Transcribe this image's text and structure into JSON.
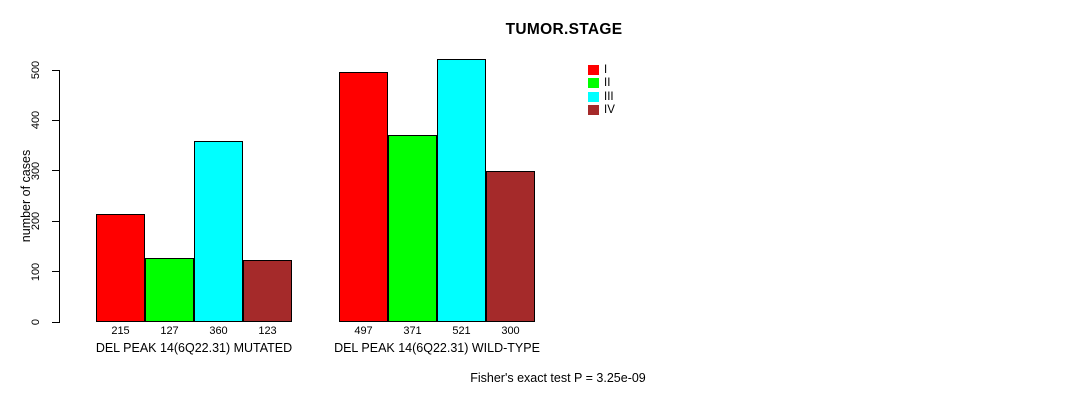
{
  "chart_data": {
    "type": "bar",
    "title": "TUMOR.STAGE",
    "ylabel": "number of cases",
    "xlabel": "",
    "ylim": [
      0,
      500
    ],
    "yticks": [
      0,
      100,
      200,
      300,
      400,
      500
    ],
    "grid": false,
    "legend_position": "right-of-plot",
    "categories": [
      "DEL PEAK 14(6Q22.31) MUTATED",
      "DEL PEAK 14(6Q22.31) WILD-TYPE"
    ],
    "series": [
      {
        "name": "I",
        "color": "#FF0000",
        "values": [
          215,
          497
        ]
      },
      {
        "name": "II",
        "color": "#00FF00",
        "values": [
          127,
          371
        ]
      },
      {
        "name": "III",
        "color": "#00FFFF",
        "values": [
          360,
          521
        ]
      },
      {
        "name": "IV",
        "color": "#A52A2A",
        "values": [
          123,
          300
        ]
      }
    ],
    "bar_value_labels": [
      [
        215,
        127,
        360,
        123
      ],
      [
        497,
        371,
        521,
        300
      ]
    ],
    "annotation": "Fisher's exact test P = 3.25e-09",
    "axis_color": "#000000",
    "background_color": "#FFFFFF"
  }
}
